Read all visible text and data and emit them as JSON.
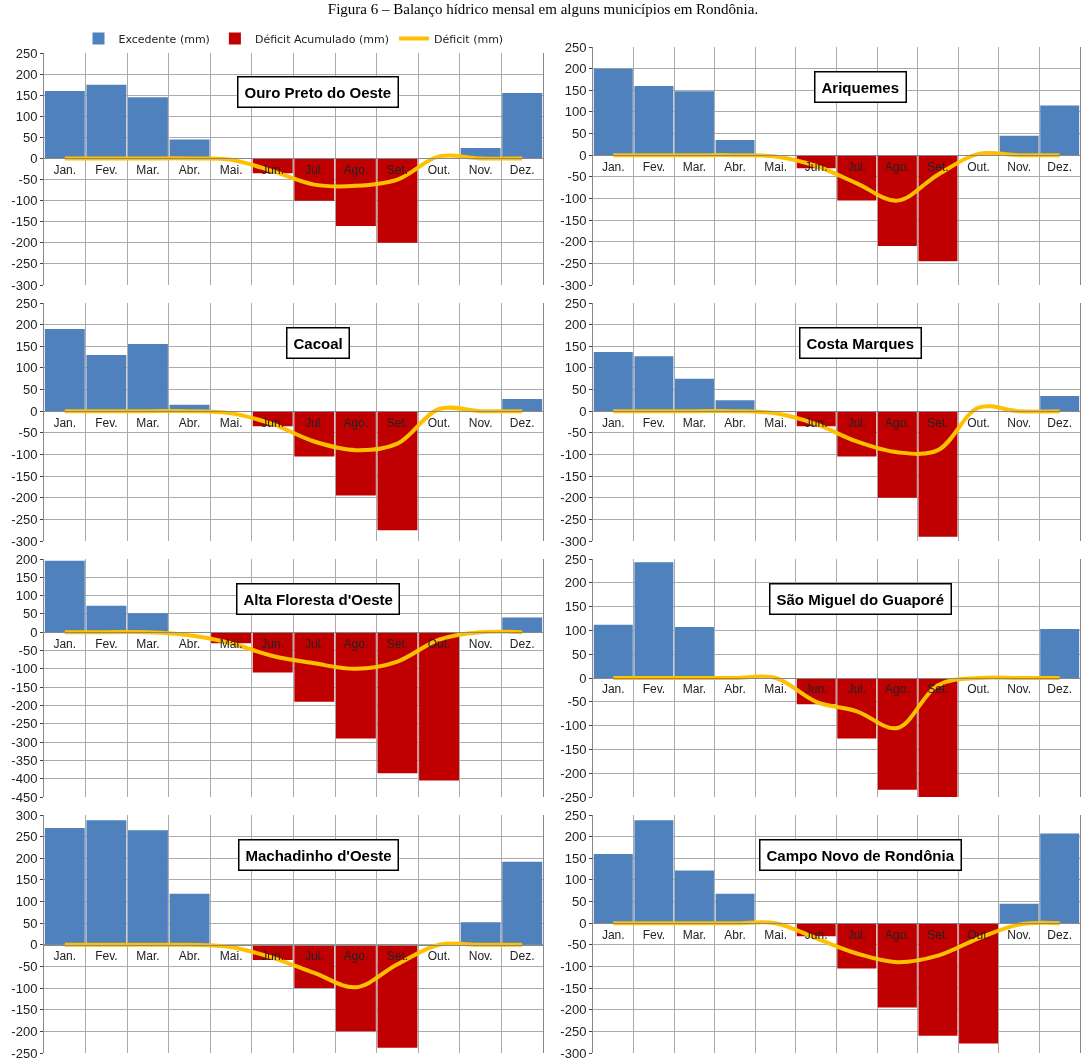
{
  "chart_data": [
    {
      "type": "bar",
      "title": "Ouro Preto do Oeste",
      "annotations": [
        "Figura 6 – Balanço hídrico mensal em alguns municípios em Rondônia."
      ],
      "legend": "top",
      "categories": [
        "Jan.",
        "Fev.",
        "Mar.",
        "Abr.",
        "Mai.",
        "Jun.",
        "Jul.",
        "Ago.",
        "Set.",
        "Out.",
        "Nov.",
        "Dez."
      ],
      "stacked": true,
      "grid": true,
      "ylim": [
        -300,
        250
      ],
      "yticks": [
        -300,
        -250,
        -200,
        -150,
        -100,
        -50,
        0,
        50,
        100,
        150,
        200,
        250
      ],
      "series": [
        {
          "name": "Excedente (mm)",
          "color": "#4f81bd",
          "values": [
            160,
            175,
            145,
            45,
            null,
            null,
            null,
            null,
            null,
            null,
            25,
            155
          ]
        },
        {
          "name": "Déficit Acumulado (mm)",
          "color": "#c00000",
          "values": [
            null,
            null,
            null,
            null,
            null,
            -35,
            -100,
            -160,
            -200,
            null,
            null,
            null
          ]
        },
        {
          "type": "line",
          "name": "Déficit (mm)",
          "color": "#ffc000",
          "values": [
            0,
            0,
            0,
            0,
            -3,
            -30,
            -62,
            -65,
            -50,
            5,
            0,
            0
          ]
        }
      ]
    },
    {
      "type": "bar",
      "title": "Ariquemes",
      "categories": [
        "Jan.",
        "Fev.",
        "Mar.",
        "Abr.",
        "Mai.",
        "Jun.",
        "Jul.",
        "Ago.",
        "Set.",
        "Out.",
        "Nov.",
        "Dez."
      ],
      "stacked": true,
      "grid": true,
      "ylim": [
        -300,
        250
      ],
      "yticks": [
        -300,
        -250,
        -200,
        -150,
        -100,
        -50,
        0,
        50,
        100,
        150,
        200,
        250
      ],
      "series": [
        {
          "color": "#4f81bd",
          "values": [
            200,
            160,
            148,
            35,
            null,
            null,
            null,
            null,
            null,
            null,
            45,
            115
          ]
        },
        {
          "color": "#c00000",
          "values": [
            null,
            null,
            null,
            null,
            null,
            -30,
            -105,
            -210,
            -245,
            null,
            null,
            null
          ]
        },
        {
          "type": "line",
          "color": "#ffc000",
          "values": [
            0,
            0,
            0,
            0,
            -3,
            -25,
            -65,
            -105,
            -45,
            3,
            0,
            0
          ]
        }
      ]
    },
    {
      "type": "bar",
      "title": "Cacoal",
      "categories": [
        "Jan.",
        "Fev.",
        "Mar.",
        "Abr.",
        "Mai.",
        "Jun.",
        "Jul.",
        "Ago.",
        "Set.",
        "Out.",
        "Nov.",
        "Dez."
      ],
      "stacked": true,
      "grid": true,
      "ylim": [
        -300,
        250
      ],
      "yticks": [
        -300,
        -250,
        -200,
        -150,
        -100,
        -50,
        0,
        50,
        100,
        150,
        200,
        250
      ],
      "series": [
        {
          "color": "#4f81bd",
          "values": [
            190,
            130,
            155,
            15,
            null,
            null,
            null,
            null,
            null,
            null,
            null,
            28
          ]
        },
        {
          "color": "#c00000",
          "values": [
            null,
            null,
            null,
            null,
            null,
            -35,
            -105,
            -195,
            -275,
            null,
            null,
            null
          ]
        },
        {
          "type": "line",
          "color": "#ffc000",
          "values": [
            0,
            0,
            0,
            0,
            -5,
            -30,
            -70,
            -90,
            -75,
            5,
            0,
            0
          ]
        }
      ]
    },
    {
      "type": "bar",
      "title": "Costa Marques",
      "categories": [
        "Jan.",
        "Fev.",
        "Mar.",
        "Abr.",
        "Mai.",
        "Jun.",
        "Jul.",
        "Ago.",
        "Set.",
        "Out.",
        "Nov.",
        "Dez."
      ],
      "stacked": true,
      "grid": true,
      "ylim": [
        -300,
        250
      ],
      "yticks": [
        -300,
        -250,
        -200,
        -150,
        -100,
        -50,
        0,
        50,
        100,
        150,
        200,
        250
      ],
      "series": [
        {
          "color": "#4f81bd",
          "values": [
            137,
            127,
            75,
            25,
            null,
            null,
            null,
            null,
            null,
            null,
            null,
            35
          ]
        },
        {
          "color": "#c00000",
          "values": [
            null,
            null,
            null,
            null,
            null,
            -35,
            -105,
            -200,
            -290,
            null,
            null,
            null
          ]
        },
        {
          "type": "line",
          "color": "#ffc000",
          "values": [
            0,
            0,
            0,
            0,
            -5,
            -30,
            -70,
            -95,
            -90,
            8,
            0,
            0
          ]
        }
      ]
    },
    {
      "type": "bar",
      "title": "Alta Floresta d'Oeste",
      "categories": [
        "Jan.",
        "Fev.",
        "Mar.",
        "Abr.",
        "Mai.",
        "Jun.",
        "Jul.",
        "Ago.",
        "Set.",
        "Out.",
        "Nov.",
        "Dez."
      ],
      "stacked": true,
      "grid": true,
      "ylim": [
        -450,
        200
      ],
      "yticks": [
        -450,
        -400,
        -350,
        -300,
        -250,
        -200,
        -150,
        -100,
        -50,
        0,
        50,
        100,
        150,
        200
      ],
      "series": [
        {
          "color": "#4f81bd",
          "values": [
            195,
            72,
            52,
            null,
            null,
            null,
            null,
            null,
            null,
            null,
            null,
            40
          ]
        },
        {
          "color": "#c00000",
          "values": [
            null,
            null,
            null,
            null,
            -30,
            -110,
            -190,
            -290,
            -385,
            -405,
            null,
            null
          ]
        },
        {
          "type": "line",
          "color": "#ffc000",
          "values": [
            0,
            0,
            0,
            -8,
            -30,
            -65,
            -85,
            -100,
            -80,
            -20,
            0,
            0
          ]
        }
      ]
    },
    {
      "type": "bar",
      "title": "São Miguel do Guaporé",
      "categories": [
        "Jan.",
        "Fev.",
        "Mar.",
        "Abr.",
        "Mai.",
        "Jun.",
        "Jul.",
        "Ago.",
        "Set.",
        "Out.",
        "Nov.",
        "Dez."
      ],
      "stacked": true,
      "grid": true,
      "ylim": [
        -250,
        250
      ],
      "yticks": [
        -250,
        -200,
        -150,
        -100,
        -50,
        0,
        50,
        100,
        150,
        200,
        250
      ],
      "series": [
        {
          "color": "#4f81bd",
          "values": [
            112,
            243,
            107,
            null,
            null,
            null,
            null,
            null,
            null,
            null,
            null,
            103
          ]
        },
        {
          "color": "#c00000",
          "values": [
            null,
            null,
            null,
            null,
            null,
            -55,
            -127,
            -235,
            -250,
            null,
            null,
            null
          ]
        },
        {
          "type": "line",
          "color": "#ffc000",
          "values": [
            0,
            0,
            0,
            0,
            0,
            -50,
            -70,
            -105,
            -15,
            0,
            0,
            0
          ]
        }
      ]
    },
    {
      "type": "bar",
      "title": "Machadinho d'Oeste",
      "categories": [
        "Jan.",
        "Fev.",
        "Mar.",
        "Abr.",
        "Mai.",
        "Jun.",
        "Jul.",
        "Ago.",
        "Set.",
        "Out.",
        "Nov.",
        "Dez."
      ],
      "stacked": true,
      "grid": true,
      "ylim": [
        -250,
        300
      ],
      "yticks": [
        -250,
        -200,
        -150,
        -100,
        -50,
        0,
        50,
        100,
        150,
        200,
        250,
        300
      ],
      "series": [
        {
          "color": "#4f81bd",
          "values": [
            270,
            288,
            265,
            118,
            null,
            null,
            null,
            null,
            null,
            null,
            52,
            192
          ]
        },
        {
          "color": "#c00000",
          "values": [
            null,
            null,
            null,
            null,
            null,
            -35,
            -100,
            -200,
            -238,
            null,
            null,
            null
          ]
        },
        {
          "type": "line",
          "color": "#ffc000",
          "values": [
            0,
            0,
            0,
            0,
            -5,
            -30,
            -65,
            -98,
            -45,
            0,
            0,
            0
          ]
        }
      ]
    },
    {
      "type": "bar",
      "title": "Campo Novo de Rondônia",
      "categories": [
        "Jan.",
        "Fev.",
        "Mar.",
        "Abr.",
        "Mai.",
        "Jun.",
        "Jul.",
        "Ago.",
        "Set.",
        "Out.",
        "Nov.",
        "Dez."
      ],
      "stacked": true,
      "grid": true,
      "ylim": [
        -300,
        250
      ],
      "yticks": [
        -300,
        -250,
        -200,
        -150,
        -100,
        -50,
        0,
        50,
        100,
        150,
        200,
        250
      ],
      "series": [
        {
          "color": "#4f81bd",
          "values": [
            160,
            238,
            122,
            68,
            null,
            null,
            null,
            null,
            null,
            null,
            45,
            207
          ]
        },
        {
          "color": "#c00000",
          "values": [
            null,
            null,
            null,
            null,
            null,
            -30,
            -105,
            -195,
            -260,
            -278,
            null,
            null
          ]
        },
        {
          "type": "line",
          "color": "#ffc000",
          "values": [
            0,
            0,
            0,
            0,
            0,
            -35,
            -70,
            -90,
            -75,
            -35,
            -3,
            0
          ]
        }
      ]
    }
  ]
}
